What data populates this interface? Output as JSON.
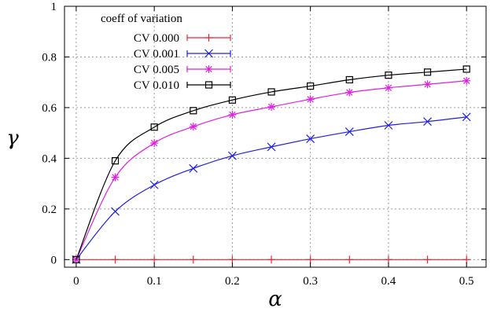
{
  "chart_data": {
    "type": "line",
    "title": "",
    "xlabel": "α",
    "ylabel": "γ",
    "xlim": [
      -0.015,
      0.525
    ],
    "ylim": [
      -0.03,
      1.0
    ],
    "x_ticks": [
      0,
      0.1,
      0.2,
      0.3,
      0.4,
      0.5
    ],
    "x_tick_labels": [
      "0",
      "0.1",
      "0.2",
      "0.3",
      "0.4",
      "0.5"
    ],
    "y_ticks": [
      0,
      0.2,
      0.4,
      0.6,
      0.8,
      1.0
    ],
    "y_tick_labels": [
      "0",
      "0.2",
      "0.4",
      "0.6",
      "0.8",
      "1"
    ],
    "grid": true,
    "legend": {
      "title": "coeff of variation",
      "placement": "top-left"
    },
    "x": [
      0,
      0.05,
      0.1,
      0.15,
      0.2,
      0.25,
      0.3,
      0.35,
      0.4,
      0.45,
      0.5
    ],
    "series": [
      {
        "name": "CV 0.000",
        "color": "#e8283a",
        "marker": "plus",
        "values": [
          0,
          0,
          0,
          0,
          0,
          0,
          0,
          0,
          0,
          0,
          0
        ]
      },
      {
        "name": "CV 0.001",
        "color": "#2020e0",
        "marker": "cross",
        "values": [
          0,
          0.19,
          0.295,
          0.36,
          0.41,
          0.445,
          0.477,
          0.505,
          0.53,
          0.545,
          0.563
        ]
      },
      {
        "name": "CV 0.005",
        "color": "#e020e0",
        "marker": "star",
        "values": [
          0,
          0.325,
          0.46,
          0.525,
          0.572,
          0.603,
          0.633,
          0.66,
          0.678,
          0.692,
          0.706
        ]
      },
      {
        "name": "CV 0.010",
        "color": "#000000",
        "marker": "square",
        "values": [
          0,
          0.39,
          0.523,
          0.588,
          0.63,
          0.662,
          0.685,
          0.71,
          0.728,
          0.74,
          0.752
        ]
      }
    ]
  }
}
